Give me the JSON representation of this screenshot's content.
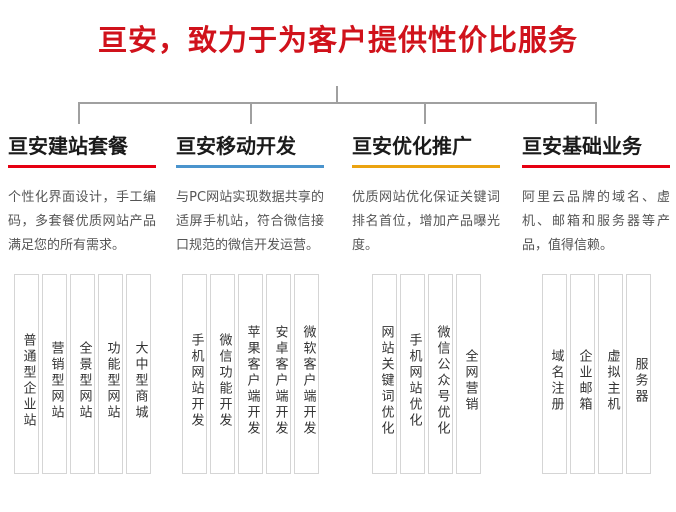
{
  "title": {
    "text": "亘安，致力于为客户提供性价比服务",
    "color": "#d0121b"
  },
  "connector_color": "#a0a0a0",
  "columns": [
    {
      "heading": "亘安建站套餐",
      "accent_color": "#e60012",
      "description": "个性化界面设计，手工编码，多套餐优质网站产品满足您的所有需求。",
      "items": [
        "普通型企业站",
        "营销型网站",
        "全景型网站",
        "功能型网站",
        "大中型商城"
      ]
    },
    {
      "heading": "亘安移动开发",
      "accent_color": "#4a94cd",
      "description": "与PC网站实现数据共享的适屏手机站，符合微信接口规范的微信开发运营。",
      "items": [
        "手机网站开发",
        "微信功能开发",
        "苹果客户端开发",
        "安卓客户端开发",
        "微软客户端开发"
      ]
    },
    {
      "heading": "亘安优化推广",
      "accent_color": "#eba310",
      "description": "优质网站优化保证关键词排名首位，增加产品曝光度。",
      "items": [
        "网站关键词优化",
        "手机网站优化",
        "微信公众号优化",
        "全网营销"
      ]
    },
    {
      "heading": "亘安基础业务",
      "accent_color": "#e60012",
      "description": "阿里云品牌的域名、虚机、邮箱和服务器等产品，值得信赖。",
      "items": [
        "域名注册",
        "企业邮箱",
        "虚拟主机",
        "服务器"
      ]
    }
  ]
}
